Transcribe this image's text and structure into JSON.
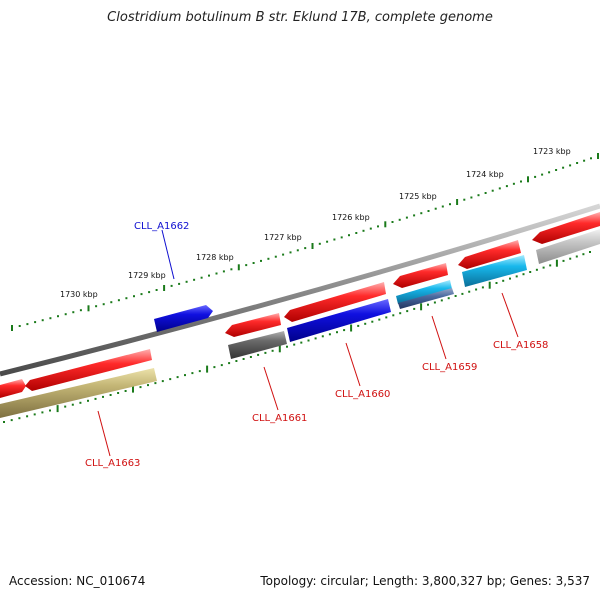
{
  "title": "Clostridium botulinum B str. Eklund 17B, complete genome",
  "footer": {
    "accession": "Accession: NC_010674",
    "summary": "Topology: circular; Length: 3,800,327 bp; Genes: 3,537"
  },
  "ticks": [
    "1723 kbp",
    "1724 kbp",
    "1725 kbp",
    "1726 kbp",
    "1727 kbp",
    "1728 kbp",
    "1729 kbp",
    "1730 kbp"
  ],
  "genes": {
    "labels": [
      "CLL_A1662",
      "CLL_A1658",
      "CLL_A1659",
      "CLL_A1660",
      "CLL_A1661",
      "CLL_A1663"
    ]
  },
  "colors": {
    "red": "#e8202a",
    "blue": "#1a1ad8",
    "cyan": "#18b8ec",
    "gray_dark": "#666666",
    "gray_light": "#c4c4c4",
    "olive": "#c2b676",
    "tick_green": "#1a7a1a",
    "label_red": "#d01010",
    "label_blue": "#1010d0"
  }
}
